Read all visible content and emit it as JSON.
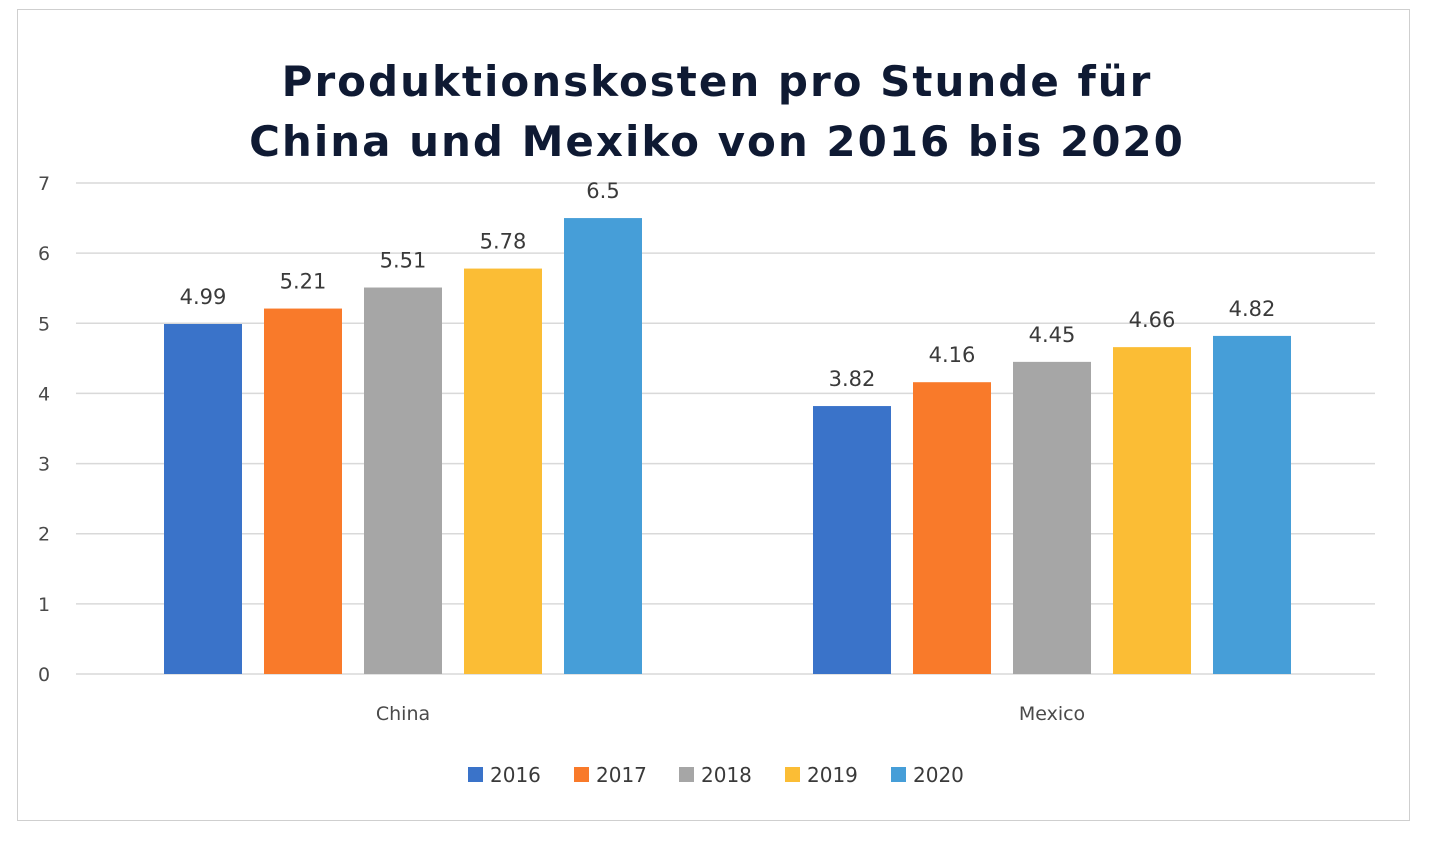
{
  "chart_data": {
    "type": "bar",
    "title_lines": [
      "Produktionskosten pro Stunde für",
      "China und Mexiko von 2016 bis 2020"
    ],
    "categories": [
      "China",
      "Mexico"
    ],
    "series": [
      {
        "name": "2016",
        "color": "#3a73c9",
        "values": [
          4.99,
          3.82
        ]
      },
      {
        "name": "2017",
        "color": "#f97a2a",
        "values": [
          5.21,
          4.16
        ]
      },
      {
        "name": "2018",
        "color": "#a6a6a6",
        "values": [
          5.51,
          4.45
        ]
      },
      {
        "name": "2019",
        "color": "#fbbd35",
        "values": [
          5.78,
          4.66
        ]
      },
      {
        "name": "2020",
        "color": "#469ed8",
        "values": [
          6.5,
          4.82
        ]
      }
    ],
    "data_labels": [
      [
        "4.99",
        "3.82"
      ],
      [
        "5.21",
        "4.16"
      ],
      [
        "5.51",
        "4.45"
      ],
      [
        "5.78",
        "4.66"
      ],
      [
        "6.5",
        "4.82"
      ]
    ],
    "ylim": [
      0,
      7
    ],
    "yticks": [
      "0",
      "1",
      "2",
      "3",
      "4",
      "5",
      "6",
      "7"
    ],
    "xlabel": "",
    "ylabel": "",
    "grid": true,
    "legend_position": "bottom"
  }
}
